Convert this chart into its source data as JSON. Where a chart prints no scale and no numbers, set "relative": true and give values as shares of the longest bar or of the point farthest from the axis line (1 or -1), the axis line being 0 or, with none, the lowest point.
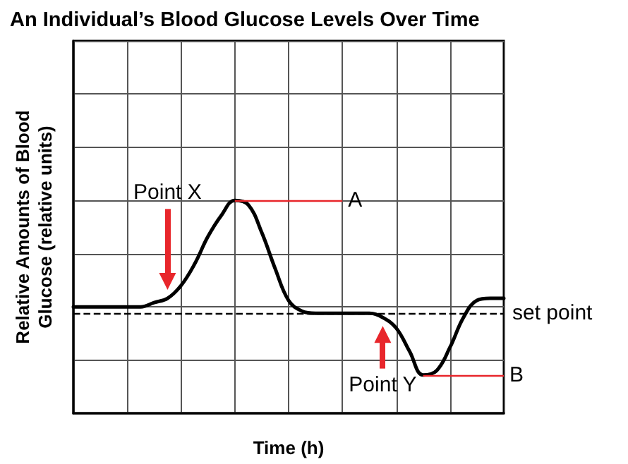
{
  "chart_data": {
    "type": "line",
    "title": "An Individual’s Blood Glucose Levels Over Time",
    "xlabel": "Time (h)",
    "ylabel": "Relative Amounts of Blood Glucose (relative units)",
    "relative": true,
    "grid": true,
    "marker": "none",
    "line_style": "solid",
    "categories": [
      null,
      null,
      null,
      null,
      null,
      null,
      null,
      null,
      null,
      null,
      null,
      null,
      null,
      null,
      null,
      null,
      null,
      null,
      null,
      null,
      null,
      null,
      null,
      null,
      null,
      null,
      null,
      null,
      null,
      null,
      null,
      null,
      null
    ],
    "series": [
      {
        "color": "#000000",
        "values": [
          0.5,
          0.5,
          0.5,
          0.5,
          0.5,
          0.5,
          0.52,
          0.54,
          0.6,
          0.7,
          0.83,
          0.93,
          1.0,
          0.98,
          0.85,
          0.68,
          0.53,
          0.48,
          0.47,
          0.47,
          0.47,
          0.47,
          0.47,
          0.45,
          0.4,
          0.29,
          0.18,
          0.2,
          0.31,
          0.45,
          0.53,
          0.54,
          0.54
        ]
      }
    ],
    "ref_lines": [
      {
        "axis": "y",
        "value": 0.47,
        "label": "set point",
        "color": "#000000",
        "line_style": "dashed"
      }
    ],
    "annotations": [
      "Point X",
      "Point Y",
      "A",
      "B"
    ]
  }
}
